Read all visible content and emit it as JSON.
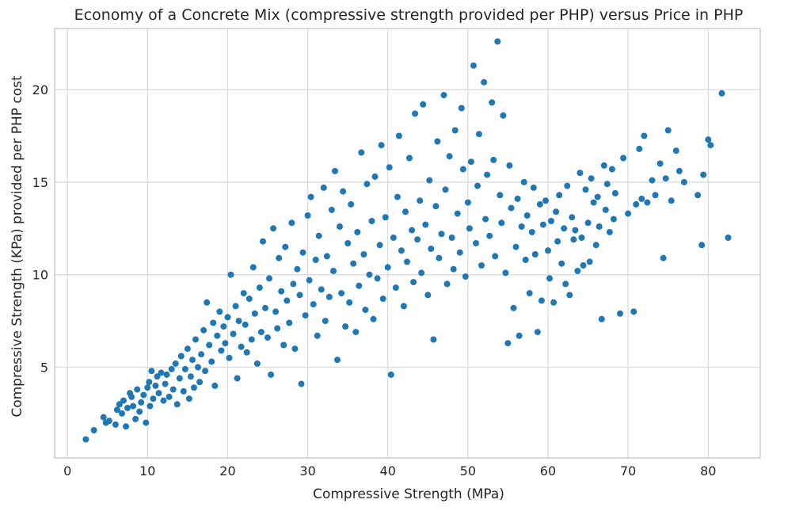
{
  "chart_data": {
    "type": "scatter",
    "title": "Economy of a Concrete Mix (compressive strength provided per PHP) versus Price in PHP",
    "xlabel": "Compressive Strength (MPa)",
    "ylabel": "Compressive Strength (KPa) provided per PHP cost",
    "xlim": [
      -1.6,
      86.5
    ],
    "ylim": [
      0.1,
      23.3
    ],
    "xticks": [
      0,
      10,
      20,
      30,
      40,
      50,
      60,
      70,
      80
    ],
    "yticks": [
      5,
      10,
      15,
      20
    ],
    "grid": true,
    "color": "#1f77b4",
    "points": [
      [
        2.3,
        1.1
      ],
      [
        3.3,
        1.6
      ],
      [
        4.5,
        2.3
      ],
      [
        4.8,
        2.0
      ],
      [
        5.2,
        2.1
      ],
      [
        6.0,
        1.9
      ],
      [
        6.2,
        2.7
      ],
      [
        6.5,
        3.0
      ],
      [
        6.8,
        2.5
      ],
      [
        7.0,
        3.2
      ],
      [
        7.3,
        1.8
      ],
      [
        7.5,
        2.8
      ],
      [
        7.8,
        3.6
      ],
      [
        8.0,
        3.4
      ],
      [
        8.2,
        2.9
      ],
      [
        8.5,
        2.2
      ],
      [
        8.7,
        3.8
      ],
      [
        9.0,
        2.6
      ],
      [
        9.2,
        3.1
      ],
      [
        9.5,
        3.5
      ],
      [
        9.8,
        2.0
      ],
      [
        10.0,
        3.9
      ],
      [
        10.2,
        4.2
      ],
      [
        10.3,
        2.9
      ],
      [
        10.5,
        4.8
      ],
      [
        10.7,
        3.3
      ],
      [
        11.0,
        4.0
      ],
      [
        11.2,
        4.5
      ],
      [
        11.4,
        3.6
      ],
      [
        11.7,
        4.7
      ],
      [
        12.0,
        3.2
      ],
      [
        12.2,
        4.1
      ],
      [
        12.4,
        4.6
      ],
      [
        12.7,
        3.4
      ],
      [
        13.0,
        4.9
      ],
      [
        13.2,
        3.8
      ],
      [
        13.5,
        5.2
      ],
      [
        13.7,
        3.0
      ],
      [
        14.0,
        4.4
      ],
      [
        14.2,
        5.6
      ],
      [
        14.5,
        3.7
      ],
      [
        14.7,
        4.9
      ],
      [
        15.0,
        6.0
      ],
      [
        15.2,
        3.3
      ],
      [
        15.4,
        4.5
      ],
      [
        15.6,
        5.4
      ],
      [
        15.8,
        3.9
      ],
      [
        16.0,
        6.5
      ],
      [
        16.3,
        5.0
      ],
      [
        16.5,
        4.2
      ],
      [
        16.7,
        5.7
      ],
      [
        17.0,
        7.0
      ],
      [
        17.2,
        4.8
      ],
      [
        17.4,
        8.5
      ],
      [
        17.7,
        6.2
      ],
      [
        18.0,
        5.3
      ],
      [
        18.2,
        7.4
      ],
      [
        18.4,
        4.0
      ],
      [
        18.7,
        6.7
      ],
      [
        19.0,
        8.0
      ],
      [
        19.2,
        5.9
      ],
      [
        19.5,
        7.2
      ],
      [
        19.7,
        6.3
      ],
      [
        20.0,
        7.7
      ],
      [
        20.2,
        5.5
      ],
      [
        20.4,
        10.0
      ],
      [
        20.7,
        6.8
      ],
      [
        21.0,
        8.3
      ],
      [
        21.2,
        4.4
      ],
      [
        21.4,
        7.5
      ],
      [
        21.7,
        6.1
      ],
      [
        22.0,
        9.0
      ],
      [
        22.2,
        7.3
      ],
      [
        22.4,
        5.8
      ],
      [
        22.7,
        8.7
      ],
      [
        23.0,
        6.5
      ],
      [
        23.2,
        10.4
      ],
      [
        23.4,
        7.9
      ],
      [
        23.7,
        5.2
      ],
      [
        24.0,
        9.3
      ],
      [
        24.2,
        6.9
      ],
      [
        24.4,
        11.8
      ],
      [
        24.7,
        8.2
      ],
      [
        25.0,
        6.6
      ],
      [
        25.2,
        9.8
      ],
      [
        25.4,
        4.6
      ],
      [
        25.7,
        12.5
      ],
      [
        26.0,
        8.0
      ],
      [
        26.2,
        7.1
      ],
      [
        26.4,
        10.9
      ],
      [
        26.7,
        9.1
      ],
      [
        27.0,
        6.2
      ],
      [
        27.2,
        11.5
      ],
      [
        27.4,
        8.6
      ],
      [
        27.7,
        7.4
      ],
      [
        28.0,
        12.8
      ],
      [
        28.2,
        9.5
      ],
      [
        28.4,
        6.0
      ],
      [
        28.7,
        10.3
      ],
      [
        29.0,
        8.9
      ],
      [
        29.2,
        4.1
      ],
      [
        29.4,
        11.2
      ],
      [
        29.7,
        7.8
      ],
      [
        30.0,
        13.2
      ],
      [
        30.2,
        9.7
      ],
      [
        30.4,
        14.2
      ],
      [
        30.7,
        8.4
      ],
      [
        31.0,
        10.8
      ],
      [
        31.2,
        6.7
      ],
      [
        31.4,
        12.1
      ],
      [
        31.7,
        9.2
      ],
      [
        32.0,
        14.7
      ],
      [
        32.2,
        7.5
      ],
      [
        32.4,
        11.0
      ],
      [
        32.7,
        8.8
      ],
      [
        33.0,
        13.5
      ],
      [
        33.2,
        10.2
      ],
      [
        33.4,
        15.6
      ],
      [
        33.7,
        5.4
      ],
      [
        34.0,
        12.6
      ],
      [
        34.2,
        9.0
      ],
      [
        34.4,
        14.5
      ],
      [
        34.7,
        7.2
      ],
      [
        35.0,
        11.7
      ],
      [
        35.2,
        8.5
      ],
      [
        35.4,
        13.8
      ],
      [
        35.7,
        10.6
      ],
      [
        36.0,
        6.9
      ],
      [
        36.2,
        12.3
      ],
      [
        36.4,
        9.4
      ],
      [
        36.7,
        16.6
      ],
      [
        37.0,
        11.1
      ],
      [
        37.2,
        8.1
      ],
      [
        37.4,
        14.9
      ],
      [
        37.7,
        10.0
      ],
      [
        38.0,
        12.9
      ],
      [
        38.2,
        7.6
      ],
      [
        38.4,
        15.3
      ],
      [
        38.7,
        9.8
      ],
      [
        39.0,
        11.6
      ],
      [
        39.2,
        17.0
      ],
      [
        39.4,
        8.7
      ],
      [
        39.7,
        13.1
      ],
      [
        40.0,
        10.4
      ],
      [
        40.2,
        15.8
      ],
      [
        40.4,
        4.6
      ],
      [
        40.7,
        12.0
      ],
      [
        41.0,
        9.3
      ],
      [
        41.2,
        14.2
      ],
      [
        41.4,
        17.5
      ],
      [
        41.7,
        11.3
      ],
      [
        42.0,
        8.3
      ],
      [
        42.2,
        13.4
      ],
      [
        42.4,
        10.7
      ],
      [
        42.7,
        16.3
      ],
      [
        43.0,
        12.4
      ],
      [
        43.2,
        9.6
      ],
      [
        43.4,
        18.7
      ],
      [
        43.7,
        11.9
      ],
      [
        44.0,
        14.0
      ],
      [
        44.2,
        10.1
      ],
      [
        44.4,
        19.2
      ],
      [
        44.7,
        12.7
      ],
      [
        45.0,
        8.9
      ],
      [
        45.2,
        15.1
      ],
      [
        45.4,
        11.4
      ],
      [
        45.7,
        6.5
      ],
      [
        46.0,
        13.7
      ],
      [
        46.2,
        17.2
      ],
      [
        46.4,
        10.9
      ],
      [
        46.7,
        12.2
      ],
      [
        47.0,
        19.7
      ],
      [
        47.2,
        14.6
      ],
      [
        47.4,
        9.5
      ],
      [
        47.7,
        16.4
      ],
      [
        48.0,
        12.0
      ],
      [
        48.2,
        10.3
      ],
      [
        48.4,
        17.8
      ],
      [
        48.7,
        13.3
      ],
      [
        49.0,
        11.2
      ],
      [
        49.2,
        19.0
      ],
      [
        49.4,
        15.7
      ],
      [
        49.7,
        9.9
      ],
      [
        50.0,
        13.9
      ],
      [
        50.2,
        12.5
      ],
      [
        50.4,
        16.1
      ],
      [
        50.7,
        21.3
      ],
      [
        51.0,
        11.7
      ],
      [
        51.2,
        14.8
      ],
      [
        51.4,
        17.6
      ],
      [
        51.7,
        10.5
      ],
      [
        52.0,
        20.4
      ],
      [
        52.2,
        13.0
      ],
      [
        52.4,
        15.4
      ],
      [
        52.7,
        12.1
      ],
      [
        53.0,
        19.3
      ],
      [
        53.2,
        16.2
      ],
      [
        53.4,
        11.0
      ],
      [
        53.7,
        22.6
      ],
      [
        54.0,
        14.3
      ],
      [
        54.2,
        12.8
      ],
      [
        54.4,
        18.6
      ],
      [
        54.7,
        10.1
      ],
      [
        55.0,
        6.3
      ],
      [
        55.2,
        15.9
      ],
      [
        55.4,
        13.6
      ],
      [
        55.7,
        8.2
      ],
      [
        56.0,
        11.5
      ],
      [
        56.2,
        14.1
      ],
      [
        56.4,
        6.7
      ],
      [
        56.7,
        12.6
      ],
      [
        57.0,
        15.0
      ],
      [
        57.2,
        10.8
      ],
      [
        57.4,
        13.2
      ],
      [
        57.7,
        9.0
      ],
      [
        58.0,
        12.3
      ],
      [
        58.2,
        14.7
      ],
      [
        58.4,
        11.1
      ],
      [
        58.7,
        6.9
      ],
      [
        59.0,
        13.8
      ],
      [
        59.2,
        8.6
      ],
      [
        59.4,
        12.7
      ],
      [
        59.7,
        14.0
      ],
      [
        60.0,
        11.3
      ],
      [
        60.2,
        9.8
      ],
      [
        60.4,
        12.9
      ],
      [
        60.7,
        8.5
      ],
      [
        61.0,
        13.4
      ],
      [
        61.2,
        11.8
      ],
      [
        61.4,
        14.3
      ],
      [
        61.7,
        10.6
      ],
      [
        62.0,
        12.5
      ],
      [
        62.2,
        9.5
      ],
      [
        62.4,
        14.8
      ],
      [
        62.7,
        8.9
      ],
      [
        63.0,
        13.1
      ],
      [
        63.2,
        11.9
      ],
      [
        63.4,
        12.4
      ],
      [
        63.7,
        10.2
      ],
      [
        64.0,
        15.5
      ],
      [
        64.2,
        12.0
      ],
      [
        64.4,
        10.5
      ],
      [
        64.7,
        14.6
      ],
      [
        65.0,
        12.8
      ],
      [
        65.2,
        10.7
      ],
      [
        65.4,
        15.2
      ],
      [
        65.7,
        13.9
      ],
      [
        66.0,
        11.6
      ],
      [
        66.2,
        14.2
      ],
      [
        66.4,
        12.6
      ],
      [
        66.7,
        7.6
      ],
      [
        67.0,
        15.9
      ],
      [
        67.2,
        13.5
      ],
      [
        67.4,
        14.9
      ],
      [
        67.7,
        12.3
      ],
      [
        68.0,
        15.7
      ],
      [
        68.2,
        13.0
      ],
      [
        68.4,
        14.4
      ],
      [
        69.0,
        7.9
      ],
      [
        69.4,
        16.3
      ],
      [
        70.0,
        13.3
      ],
      [
        70.7,
        8.0
      ],
      [
        71.0,
        13.8
      ],
      [
        71.4,
        16.8
      ],
      [
        71.7,
        14.1
      ],
      [
        72.0,
        17.5
      ],
      [
        72.4,
        13.9
      ],
      [
        73.0,
        15.1
      ],
      [
        73.4,
        14.3
      ],
      [
        74.0,
        16.0
      ],
      [
        74.4,
        10.9
      ],
      [
        74.7,
        15.2
      ],
      [
        75.0,
        17.8
      ],
      [
        75.4,
        14.0
      ],
      [
        76.0,
        16.7
      ],
      [
        76.4,
        15.6
      ],
      [
        77.0,
        15.0
      ],
      [
        78.7,
        14.3
      ],
      [
        79.2,
        11.6
      ],
      [
        79.4,
        15.4
      ],
      [
        80.0,
        17.3
      ],
      [
        80.3,
        17.0
      ],
      [
        81.7,
        19.8
      ],
      [
        82.5,
        12.0
      ]
    ]
  }
}
